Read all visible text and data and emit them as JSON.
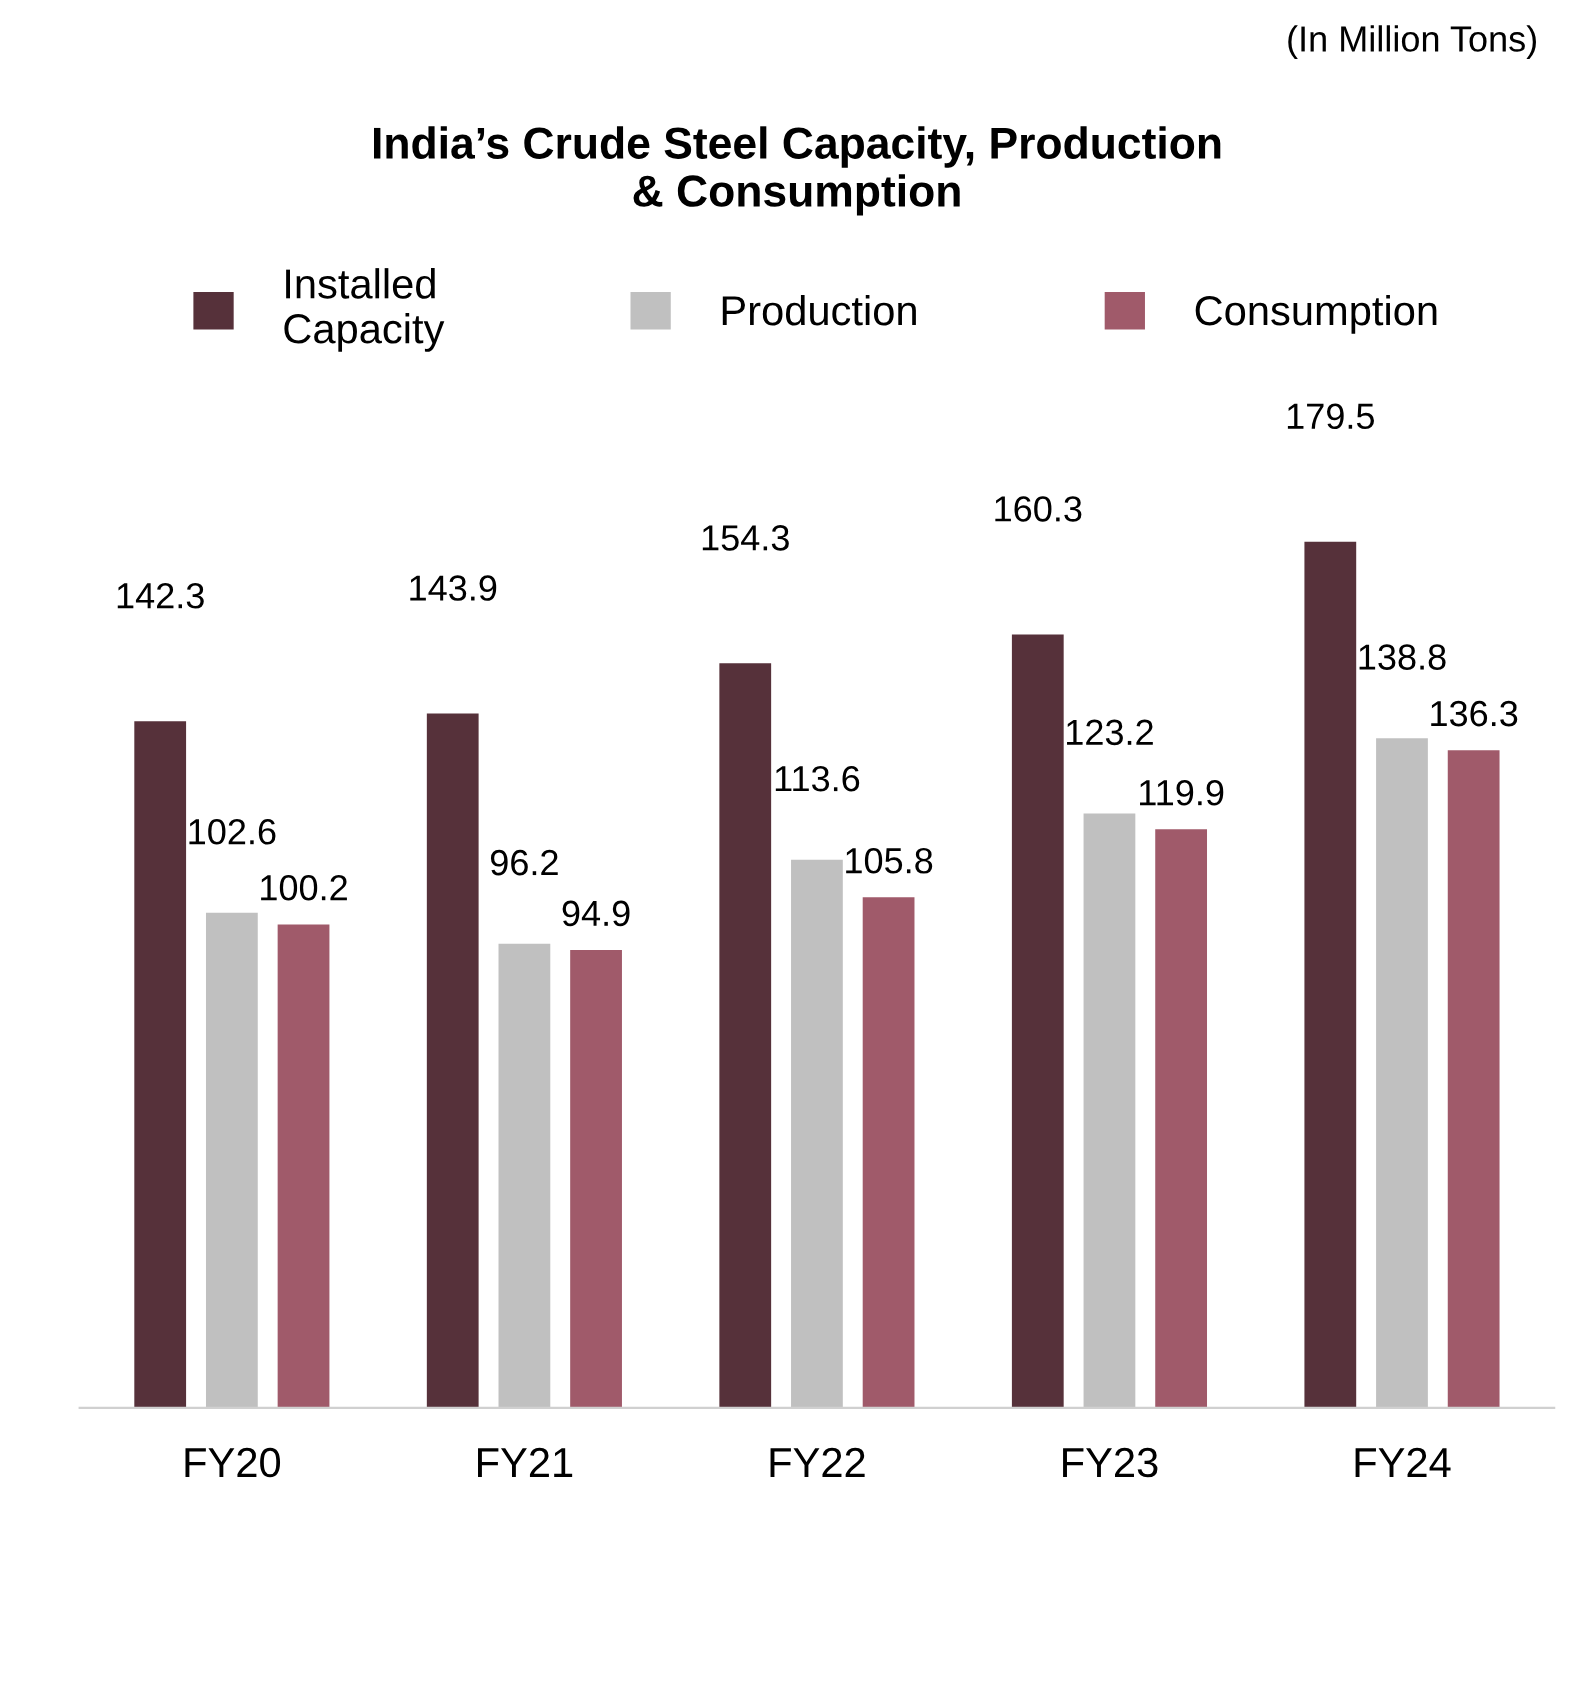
{
  "chart_data": {
    "type": "bar",
    "title": "India’s Crude Steel Capacity, Production\n& Consumption",
    "annotations": [
      "(In Million Tons)"
    ],
    "categories": [
      "FY20",
      "FY21",
      "FY22",
      "FY23",
      "FY24"
    ],
    "series": [
      {
        "name": "Installed\nCapacity",
        "color": "#56313a",
        "values": [
          142.3,
          143.9,
          154.3,
          160.3,
          179.5
        ]
      },
      {
        "name": "Production",
        "color": "#c0c0c0",
        "values": [
          102.6,
          96.2,
          113.6,
          123.2,
          138.8
        ]
      },
      {
        "name": "Consumption",
        "color": "#a05a6a",
        "values": [
          100.2,
          94.9,
          105.8,
          119.9,
          136.3
        ]
      }
    ],
    "data_labels": true,
    "legend": "top",
    "grid": false
  }
}
